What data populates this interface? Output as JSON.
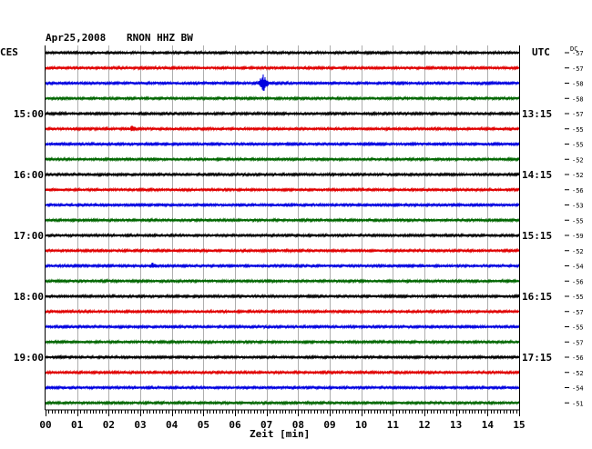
{
  "header": {
    "date": "Apr25,2008",
    "station": "RNON HHZ BW",
    "left_zone": "CES",
    "right_zone": "UTC",
    "dc_label": "DC"
  },
  "chart_data": {
    "type": "helicorder",
    "xlabel": "Zeit [min]",
    "xlim": [
      0,
      15
    ],
    "x_ticks": [
      "00",
      "01",
      "02",
      "03",
      "04",
      "05",
      "06",
      "07",
      "08",
      "09",
      "10",
      "11",
      "12",
      "13",
      "14",
      "15"
    ],
    "trace_colors": [
      "#000000",
      "#e00000",
      "#0000e0",
      "#006600"
    ],
    "left_hour_labels": [
      {
        "trace": 4,
        "label": "15:00"
      },
      {
        "trace": 8,
        "label": "16:00"
      },
      {
        "trace": 12,
        "label": "17:00"
      },
      {
        "trace": 16,
        "label": "18:00"
      },
      {
        "trace": 20,
        "label": "19:00"
      }
    ],
    "right_hour_labels": [
      {
        "trace": 4,
        "label": "13:15"
      },
      {
        "trace": 8,
        "label": "14:15"
      },
      {
        "trace": 12,
        "label": "15:15"
      },
      {
        "trace": 16,
        "label": "16:15"
      },
      {
        "trace": 20,
        "label": "17:15"
      }
    ],
    "dc_offsets": [
      "-57",
      "-57",
      "-58",
      "-58",
      "-57",
      "-55",
      "-55",
      "-52",
      "-52",
      "-56",
      "-53",
      "-55",
      "-59",
      "-52",
      "-54",
      "-56",
      "-55",
      "-57",
      "-55",
      "-57",
      "-56",
      "-52",
      "-54",
      "-51"
    ],
    "events": [
      {
        "trace": 2,
        "minute": 6.9,
        "amplitude": 10
      },
      {
        "trace": 5,
        "minute": 2.75,
        "amplitude": 4
      },
      {
        "trace": 5,
        "minute": 14.7,
        "amplitude": 2
      },
      {
        "trace": 14,
        "minute": 3.4,
        "amplitude": 4
      },
      {
        "trace": 3,
        "minute": 13.5,
        "amplitude": 2
      }
    ]
  }
}
